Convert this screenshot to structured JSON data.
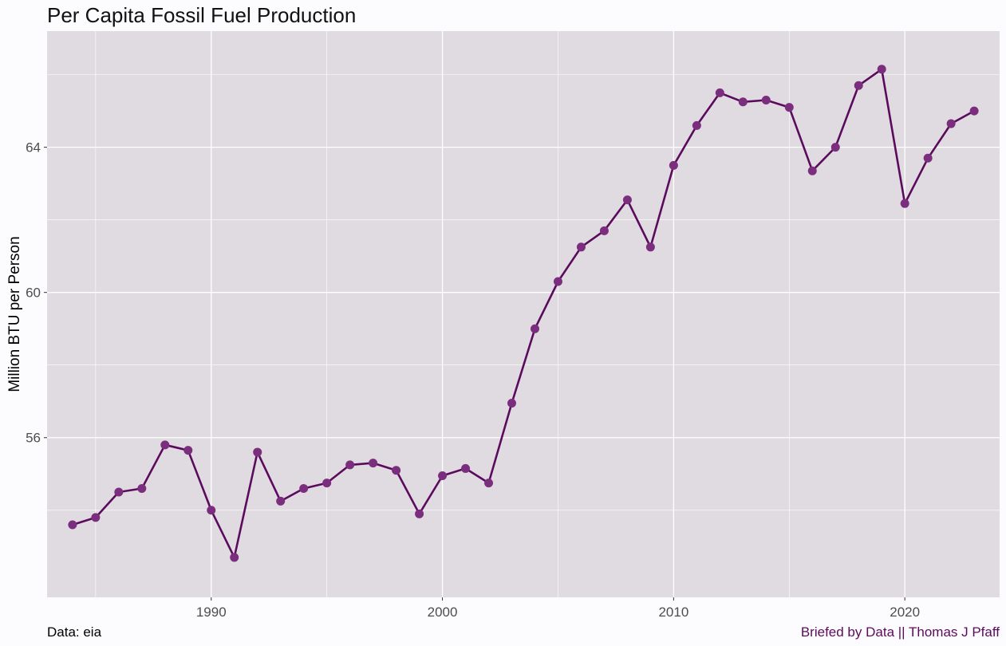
{
  "chart_data": {
    "type": "line",
    "title": "Per Capita Fossil Fuel Production",
    "xlabel": "",
    "ylabel": "Million BTU per Person",
    "caption_left": "Data: eia",
    "caption_right": "Briefed by Data || Thomas J Pfaff",
    "x": [
      1984,
      1985,
      1986,
      1987,
      1988,
      1989,
      1990,
      1991,
      1992,
      1993,
      1994,
      1995,
      1996,
      1997,
      1998,
      1999,
      2000,
      2001,
      2002,
      2003,
      2004,
      2005,
      2006,
      2007,
      2008,
      2009,
      2010,
      2011,
      2012,
      2013,
      2014,
      2015,
      2016,
      2017,
      2018,
      2019,
      2020,
      2021,
      2022,
      2023
    ],
    "series": [
      {
        "values": [
          53.6,
          53.8,
          54.5,
          54.6,
          55.8,
          55.65,
          54.0,
          52.7,
          55.6,
          54.25,
          54.6,
          54.75,
          55.25,
          55.3,
          55.1,
          53.9,
          54.95,
          55.15,
          54.75,
          56.95,
          59.0,
          60.3,
          61.25,
          61.7,
          62.55,
          61.25,
          63.5,
          64.6,
          65.5,
          65.25,
          65.3,
          65.1,
          63.35,
          64.0,
          65.7,
          66.15,
          62.45,
          63.7,
          64.65,
          65.0
        ]
      }
    ],
    "xlim": [
      1982.9,
      2024.1
    ],
    "ylim": [
      51.6,
      67.2
    ],
    "xticks": [
      1990,
      2000,
      2010,
      2020
    ],
    "xminor": [
      1985,
      1995,
      2005,
      2015
    ],
    "yticks": [
      56,
      60,
      64
    ],
    "yminor": [
      54,
      58,
      62,
      66
    ],
    "grid": true,
    "legend": "none",
    "colors": {
      "page_background": "#fcfbfd",
      "panel_background": "#e0dbe0",
      "grid": "#ffffff",
      "line": "#5b0b5d",
      "point": "#7b2d7e",
      "caption_right": "#5b0b5d"
    }
  }
}
